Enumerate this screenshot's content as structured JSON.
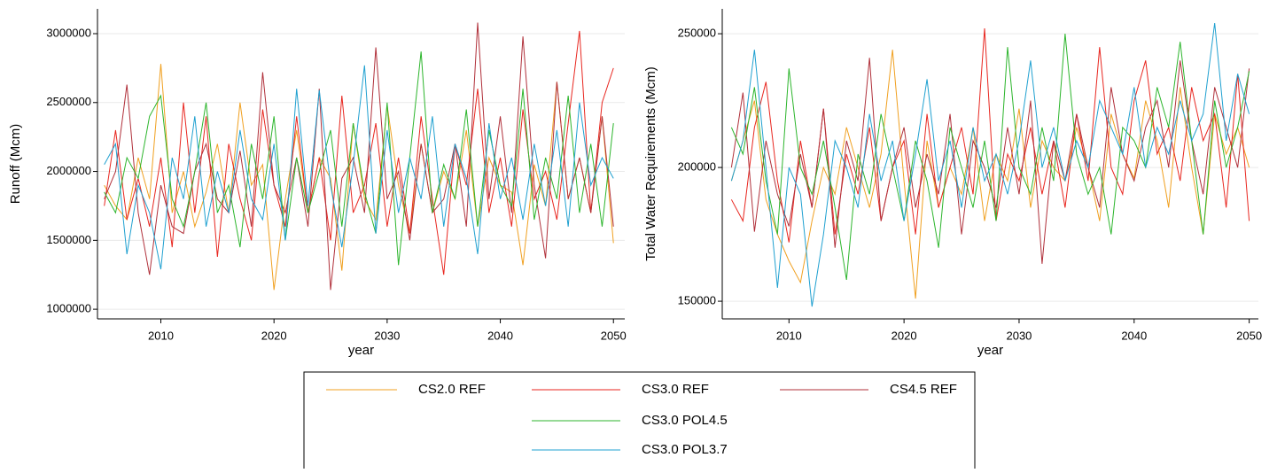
{
  "chart_data": [
    {
      "type": "line",
      "ylabel": "Runoff (Mcm)",
      "xlabel": "year",
      "x": [
        2005,
        2006,
        2007,
        2008,
        2009,
        2010,
        2011,
        2012,
        2013,
        2014,
        2015,
        2016,
        2017,
        2018,
        2019,
        2020,
        2021,
        2022,
        2023,
        2024,
        2025,
        2026,
        2027,
        2028,
        2029,
        2030,
        2031,
        2032,
        2033,
        2034,
        2035,
        2036,
        2037,
        2038,
        2039,
        2040,
        2041,
        2042,
        2043,
        2044,
        2045,
        2046,
        2047,
        2048,
        2049,
        2050
      ],
      "xlim": [
        2004.4,
        2051
      ],
      "xticks": [
        2010,
        2020,
        2030,
        2040,
        2050
      ],
      "ylim": [
        930000,
        3180000
      ],
      "yticks": [
        1000000,
        1500000,
        2000000,
        2500000,
        3000000
      ],
      "grid": true,
      "series": [
        {
          "name": "CS2.0 REF",
          "color": "#f0a020",
          "values": [
            1900000,
            1750000,
            1650000,
            2100000,
            1800000,
            2780000,
            1700000,
            2000000,
            1600000,
            1850000,
            2200000,
            1700000,
            2500000,
            1900000,
            2050000,
            1140000,
            1800000,
            2300000,
            1700000,
            2100000,
            1950000,
            1280000,
            2350000,
            1800000,
            1650000,
            2480000,
            1900000,
            1550000,
            2200000,
            1700000,
            2000000,
            1800000,
            2300000,
            1600000,
            2100000,
            1900000,
            1850000,
            1320000,
            2050000,
            1750000,
            2650000,
            1800000,
            2100000,
            1700000,
            2400000,
            1480000
          ]
        },
        {
          "name": "CS3.0 REF",
          "color": "#e8261f",
          "values": [
            1750000,
            2300000,
            1650000,
            1950000,
            1600000,
            2100000,
            1450000,
            2500000,
            1700000,
            2400000,
            1380000,
            2200000,
            1800000,
            1500000,
            2450000,
            1900000,
            1600000,
            2400000,
            1700000,
            2100000,
            1500000,
            2550000,
            1700000,
            1900000,
            2350000,
            1600000,
            2100000,
            1550000,
            2400000,
            1800000,
            1250000,
            2200000,
            1900000,
            2600000,
            1700000,
            2100000,
            1600000,
            2450000,
            1800000,
            2000000,
            1650000,
            2350000,
            3020000,
            1700000,
            2500000,
            2750000
          ]
        },
        {
          "name": "CS4.5 REF",
          "color": "#b0303a",
          "values": [
            1800000,
            2000000,
            2630000,
            1700000,
            1250000,
            1900000,
            1600000,
            1550000,
            2000000,
            2200000,
            1800000,
            1700000,
            2150000,
            1600000,
            2720000,
            1900000,
            1700000,
            2100000,
            1600000,
            2600000,
            1140000,
            1950000,
            2100000,
            1700000,
            2900000,
            1800000,
            2000000,
            1500000,
            2200000,
            1700000,
            1800000,
            2200000,
            1600000,
            3080000,
            1800000,
            2400000,
            1700000,
            2980000,
            1900000,
            1370000,
            2650000,
            1800000,
            2100000,
            1700000,
            2400000,
            1600000
          ]
        },
        {
          "name": "CS3.0 POL4.5",
          "color": "#2cb52c",
          "values": [
            1850000,
            1700000,
            2100000,
            1950000,
            2400000,
            2550000,
            1800000,
            1600000,
            2000000,
            2500000,
            1700000,
            1900000,
            1450000,
            2200000,
            1800000,
            2400000,
            1500000,
            2100000,
            1700000,
            2000000,
            2300000,
            1600000,
            2350000,
            1850000,
            1550000,
            2500000,
            1320000,
            2100000,
            2870000,
            1700000,
            2050000,
            1800000,
            2450000,
            1600000,
            2300000,
            1900000,
            1750000,
            2600000,
            1650000,
            2100000,
            1800000,
            2550000,
            1700000,
            2200000,
            1600000,
            2350000
          ]
        },
        {
          "name": "CS3.0 POL3.7",
          "color": "#1fa0d0",
          "values": [
            2050000,
            2200000,
            1400000,
            1900000,
            1700000,
            1290000,
            2100000,
            1800000,
            2400000,
            1600000,
            2000000,
            1700000,
            2300000,
            1800000,
            1650000,
            2200000,
            1500000,
            2600000,
            1750000,
            2590000,
            1900000,
            1450000,
            2050000,
            2770000,
            1550000,
            2300000,
            1700000,
            2100000,
            1800000,
            2400000,
            1600000,
            2200000,
            1950000,
            1400000,
            2350000,
            1800000,
            2100000,
            1650000,
            2200000,
            1750000,
            2300000,
            1600000,
            2500000,
            1900000,
            2100000,
            1950000
          ]
        }
      ]
    },
    {
      "type": "line",
      "ylabel": "Total Water Requirements (Mcm)",
      "xlabel": "year",
      "x": [
        2005,
        2006,
        2007,
        2008,
        2009,
        2010,
        2011,
        2012,
        2013,
        2014,
        2015,
        2016,
        2017,
        2018,
        2019,
        2020,
        2021,
        2022,
        2023,
        2024,
        2025,
        2026,
        2027,
        2028,
        2029,
        2030,
        2031,
        2032,
        2033,
        2034,
        2035,
        2036,
        2037,
        2038,
        2039,
        2040,
        2041,
        2042,
        2043,
        2044,
        2045,
        2046,
        2047,
        2048,
        2049,
        2050
      ],
      "xlim": [
        2004.2,
        2050.8
      ],
      "xticks": [
        2010,
        2020,
        2030,
        2040,
        2050
      ],
      "ylim": [
        143400,
        259300
      ],
      "yticks": [
        150000,
        200000,
        250000
      ],
      "grid": true,
      "series": [
        {
          "name": "CS2.0 REF",
          "color": "#f0a020",
          "values": [
            195000,
            210000,
            225000,
            188000,
            175000,
            165000,
            157000,
            180000,
            200000,
            190000,
            215000,
            200000,
            185000,
            205000,
            244000,
            195000,
            151000,
            210000,
            185000,
            200000,
            190000,
            215000,
            180000,
            205000,
            195000,
            222000,
            185000,
            210000,
            200000,
            195000,
            215000,
            200000,
            180000,
            220000,
            205000,
            196000,
            225000,
            210000,
            185000,
            230000,
            200000,
            175000,
            220000,
            205000,
            215000,
            200000
          ]
        },
        {
          "name": "CS3.0 REF",
          "color": "#e8261f",
          "values": [
            188000,
            180000,
            215000,
            232000,
            195000,
            172000,
            210000,
            185000,
            222000,
            175000,
            205000,
            190000,
            215000,
            180000,
            200000,
            210000,
            175000,
            220000,
            185000,
            200000,
            215000,
            190000,
            252000,
            180000,
            205000,
            195000,
            215000,
            190000,
            210000,
            185000,
            220000,
            195000,
            245000,
            200000,
            190000,
            225000,
            240000,
            205000,
            215000,
            195000,
            230000,
            210000,
            220000,
            185000,
            235000,
            180000
          ]
        },
        {
          "name": "CS4.5 REF",
          "color": "#b0303a",
          "values": [
            200000,
            228000,
            176000,
            210000,
            190000,
            178000,
            205000,
            185000,
            222000,
            170000,
            210000,
            195000,
            241000,
            180000,
            200000,
            215000,
            185000,
            205000,
            190000,
            220000,
            175000,
            210000,
            200000,
            185000,
            215000,
            190000,
            225000,
            164000,
            210000,
            195000,
            220000,
            200000,
            185000,
            230000,
            205000,
            195000,
            215000,
            225000,
            200000,
            240000,
            210000,
            190000,
            230000,
            215000,
            200000,
            237000
          ]
        },
        {
          "name": "CS3.0 POL4.5",
          "color": "#2cb52c",
          "values": [
            215000,
            205000,
            230000,
            195000,
            175000,
            237000,
            200000,
            190000,
            210000,
            185000,
            158000,
            205000,
            190000,
            220000,
            200000,
            180000,
            210000,
            195000,
            170000,
            215000,
            200000,
            185000,
            210000,
            180000,
            245000,
            200000,
            190000,
            215000,
            195000,
            250000,
            205000,
            190000,
            200000,
            175000,
            215000,
            210000,
            200000,
            230000,
            215000,
            247000,
            210000,
            175000,
            225000,
            200000,
            215000,
            236000
          ]
        },
        {
          "name": "CS3.0 POL3.7",
          "color": "#1fa0d0",
          "values": [
            195000,
            210000,
            244000,
            200000,
            155000,
            200000,
            190000,
            148000,
            175000,
            210000,
            200000,
            185000,
            220000,
            195000,
            210000,
            180000,
            205000,
            233000,
            195000,
            210000,
            185000,
            215000,
            195000,
            205000,
            190000,
            210000,
            240000,
            200000,
            215000,
            195000,
            210000,
            200000,
            225000,
            215000,
            205000,
            230000,
            200000,
            215000,
            205000,
            225000,
            210000,
            220000,
            254000,
            210000,
            235000,
            220000
          ]
        }
      ]
    }
  ]
}
